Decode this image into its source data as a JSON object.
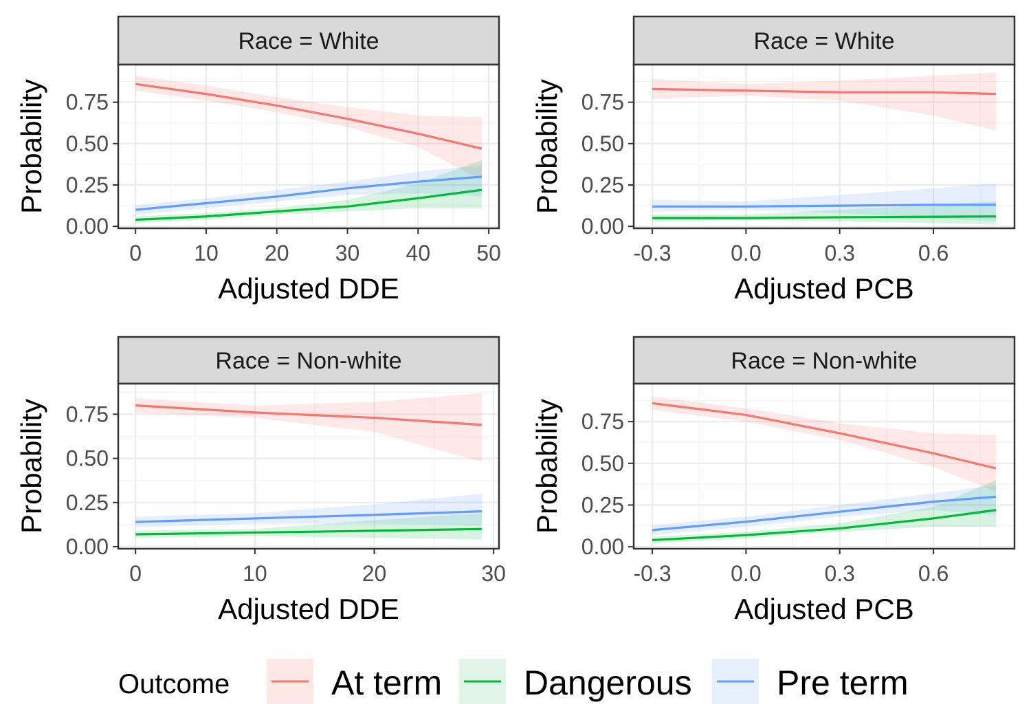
{
  "legend": {
    "title": "Outcome",
    "items": [
      {
        "label": "At term",
        "color": "#F8766D",
        "fill": "#FDE8E6"
      },
      {
        "label": "Dangerous",
        "color": "#00BA38",
        "fill": "#E0F5E7"
      },
      {
        "label": "Pre term",
        "color": "#619CFF",
        "fill": "#E7F0FF"
      }
    ]
  },
  "chart_data": [
    {
      "type": "line",
      "title": "Race = White",
      "xlabel": "Adjusted DDE",
      "ylabel": "Probability",
      "xlim": [
        -2.45,
        51.45
      ],
      "ylim": [
        -0.0117,
        0.9771
      ],
      "xticks": [
        0,
        10,
        20,
        30,
        40,
        50
      ],
      "xtick_labels": [
        "0",
        "10",
        "20",
        "30",
        "40",
        "50"
      ],
      "yticks": [
        0,
        0.25,
        0.5,
        0.75
      ],
      "ytick_labels": [
        "0.00",
        "0.25",
        "0.50",
        "0.75"
      ],
      "grid": true,
      "series": [
        {
          "name": "At term",
          "x": [
            0,
            10,
            20,
            30,
            40,
            49
          ],
          "values": [
            0.86,
            0.8,
            0.73,
            0.65,
            0.56,
            0.47
          ],
          "lower": [
            0.82,
            0.76,
            0.69,
            0.6,
            0.48,
            0.28
          ],
          "upper": [
            0.91,
            0.85,
            0.78,
            0.72,
            0.67,
            0.66
          ]
        },
        {
          "name": "Dangerous",
          "x": [
            0,
            10,
            20,
            30,
            40,
            49
          ],
          "values": [
            0.04,
            0.06,
            0.09,
            0.12,
            0.17,
            0.22
          ],
          "lower": [
            0.02,
            0.04,
            0.07,
            0.09,
            0.11,
            0.11
          ],
          "upper": [
            0.06,
            0.08,
            0.11,
            0.16,
            0.26,
            0.4
          ]
        },
        {
          "name": "Pre term",
          "x": [
            0,
            10,
            20,
            30,
            40,
            49
          ],
          "values": [
            0.1,
            0.14,
            0.18,
            0.23,
            0.27,
            0.3
          ],
          "lower": [
            0.07,
            0.11,
            0.15,
            0.19,
            0.2,
            0.18
          ],
          "upper": [
            0.13,
            0.17,
            0.22,
            0.27,
            0.33,
            0.37
          ]
        }
      ]
    },
    {
      "type": "line",
      "title": "Race = White",
      "xlabel": "Adjusted PCB",
      "ylabel": "Probability",
      "xlim": [
        -0.3595,
        0.8595
      ],
      "ylim": [
        -0.0117,
        0.9771
      ],
      "xticks": [
        -0.3,
        0,
        0.3,
        0.6
      ],
      "xtick_labels": [
        "-0.3",
        "0.0",
        "0.3",
        "0.6"
      ],
      "yticks": [
        0,
        0.25,
        0.5,
        0.75
      ],
      "ytick_labels": [
        "0.00",
        "0.25",
        "0.50",
        "0.75"
      ],
      "grid": true,
      "series": [
        {
          "name": "At term",
          "x": [
            -0.3,
            0,
            0.3,
            0.6,
            0.8
          ],
          "values": [
            0.83,
            0.82,
            0.81,
            0.81,
            0.8
          ],
          "lower": [
            0.77,
            0.79,
            0.76,
            0.67,
            0.58
          ],
          "upper": [
            0.89,
            0.86,
            0.88,
            0.91,
            0.93
          ]
        },
        {
          "name": "Dangerous",
          "x": [
            -0.3,
            0,
            0.3,
            0.6,
            0.8
          ],
          "values": [
            0.05,
            0.05,
            0.055,
            0.058,
            0.06
          ],
          "lower": [
            0.03,
            0.04,
            0.03,
            0.02,
            0.01
          ],
          "upper": [
            0.07,
            0.07,
            0.1,
            0.13,
            0.15
          ]
        },
        {
          "name": "Pre term",
          "x": [
            -0.3,
            0,
            0.3,
            0.6,
            0.8
          ],
          "values": [
            0.12,
            0.12,
            0.125,
            0.13,
            0.13
          ],
          "lower": [
            0.09,
            0.1,
            0.08,
            0.05,
            0.03
          ],
          "upper": [
            0.16,
            0.15,
            0.19,
            0.23,
            0.26
          ]
        }
      ]
    },
    {
      "type": "line",
      "title": "Race = Non-white",
      "xlabel": "Adjusted DDE",
      "ylabel": "Probability",
      "xlim": [
        -1.45,
        30.45
      ],
      "ylim": [
        -0.0117,
        0.9231
      ],
      "xticks": [
        0,
        10,
        20,
        30
      ],
      "xtick_labels": [
        "0",
        "10",
        "20",
        "30"
      ],
      "yticks": [
        0,
        0.25,
        0.5,
        0.75
      ],
      "ytick_labels": [
        "0.00",
        "0.25",
        "0.50",
        "0.75"
      ],
      "grid": true,
      "series": [
        {
          "name": "At term",
          "x": [
            0,
            10,
            20,
            29
          ],
          "values": [
            0.8,
            0.76,
            0.73,
            0.69
          ],
          "lower": [
            0.76,
            0.73,
            0.65,
            0.48
          ],
          "upper": [
            0.84,
            0.8,
            0.82,
            0.87
          ]
        },
        {
          "name": "Dangerous",
          "x": [
            0,
            10,
            20,
            29
          ],
          "values": [
            0.07,
            0.08,
            0.09,
            0.1
          ],
          "lower": [
            0.05,
            0.06,
            0.05,
            0.04
          ],
          "upper": [
            0.09,
            0.1,
            0.15,
            0.19
          ]
        },
        {
          "name": "Pre term",
          "x": [
            0,
            10,
            20,
            29
          ],
          "values": [
            0.14,
            0.16,
            0.18,
            0.2
          ],
          "lower": [
            0.11,
            0.13,
            0.13,
            0.12
          ],
          "upper": [
            0.17,
            0.19,
            0.24,
            0.3
          ]
        }
      ]
    },
    {
      "type": "line",
      "title": "Race = Non-white",
      "xlabel": "Adjusted PCB",
      "ylabel": "Probability",
      "xlim": [
        -0.3595,
        0.8595
      ],
      "ylim": [
        -0.0117,
        0.9771
      ],
      "xticks": [
        -0.3,
        0,
        0.3,
        0.6
      ],
      "xtick_labels": [
        "-0.3",
        "0.0",
        "0.3",
        "0.6"
      ],
      "yticks": [
        0,
        0.25,
        0.5,
        0.75
      ],
      "ytick_labels": [
        "0.00",
        "0.25",
        "0.50",
        "0.75"
      ],
      "grid": true,
      "series": [
        {
          "name": "At term",
          "x": [
            -0.3,
            0,
            0.3,
            0.6,
            0.8
          ],
          "values": [
            0.86,
            0.79,
            0.68,
            0.56,
            0.47
          ],
          "lower": [
            0.82,
            0.75,
            0.64,
            0.48,
            0.33
          ],
          "upper": [
            0.9,
            0.83,
            0.74,
            0.68,
            0.67
          ]
        },
        {
          "name": "Dangerous",
          "x": [
            -0.3,
            0,
            0.3,
            0.6,
            0.8
          ],
          "values": [
            0.04,
            0.07,
            0.11,
            0.17,
            0.22
          ],
          "lower": [
            0.02,
            0.05,
            0.09,
            0.12,
            0.12
          ],
          "upper": [
            0.06,
            0.09,
            0.14,
            0.24,
            0.4
          ]
        },
        {
          "name": "Pre term",
          "x": [
            -0.3,
            0,
            0.3,
            0.6,
            0.8
          ],
          "values": [
            0.1,
            0.15,
            0.21,
            0.27,
            0.3
          ],
          "lower": [
            0.07,
            0.12,
            0.18,
            0.22,
            0.19
          ],
          "upper": [
            0.13,
            0.18,
            0.25,
            0.32,
            0.37
          ]
        }
      ]
    }
  ]
}
